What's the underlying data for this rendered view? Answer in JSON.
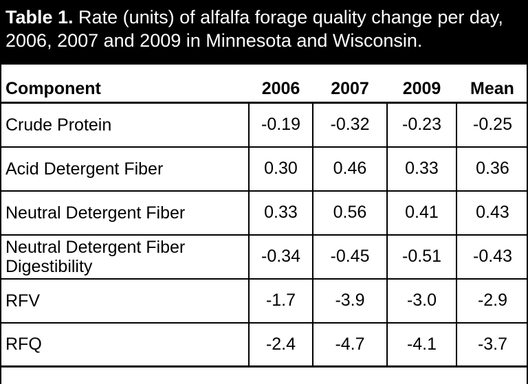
{
  "title": {
    "label": "Table 1.",
    "text": " Rate (units) of alfalfa forage quality change per day,  2006, 2007 and 2009 in Minnesota and Wisconsin."
  },
  "header": {
    "component": "Component",
    "y2006": "2006",
    "y2007": "2007",
    "y2009": "2009",
    "mean": "Mean"
  },
  "rows": [
    {
      "component": "Crude Protein",
      "y2006": "-0.19",
      "y2007": "-0.32",
      "y2009": "-0.23",
      "mean": "-0.25"
    },
    {
      "component": "Acid Detergent Fiber",
      "y2006": "0.30",
      "y2007": "0.46",
      "y2009": "0.33",
      "mean": "0.36"
    },
    {
      "component": "Neutral Detergent Fiber",
      "y2006": "0.33",
      "y2007": "0.56",
      "y2009": "0.41",
      "mean": "0.43"
    },
    {
      "component": "Neutral Detergent Fiber Digestibility",
      "y2006": "-0.34",
      "y2007": "-0.45",
      "y2009": "-0.51",
      "mean": "-0.43"
    },
    {
      "component": "RFV",
      "y2006": "-1.7",
      "y2007": "-3.9",
      "y2009": "-3.0",
      "mean": "-2.9"
    },
    {
      "component": "RFQ",
      "y2006": "-2.4",
      "y2007": "-4.7",
      "y2009": "-4.1",
      "mean": "-3.7"
    }
  ]
}
